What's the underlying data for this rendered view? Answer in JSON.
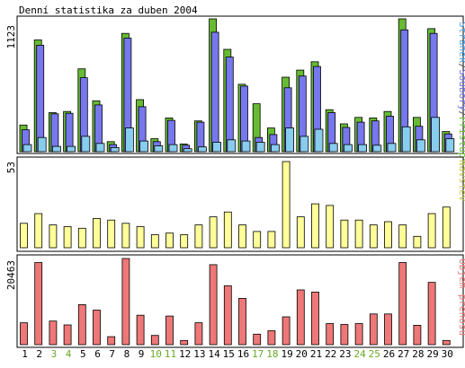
{
  "chart_data": {
    "type": "bar",
    "title": "Denní statistika za duben 2004",
    "categories": [
      "1",
      "2",
      "3",
      "4",
      "5",
      "6",
      "7",
      "8",
      "9",
      "10",
      "11",
      "12",
      "13",
      "14",
      "15",
      "16",
      "17",
      "18",
      "19",
      "20",
      "21",
      "22",
      "23",
      "24",
      "25",
      "26",
      "27",
      "28",
      "29",
      "30"
    ],
    "weekend_days": [
      "3",
      "4",
      "10",
      "11",
      "17",
      "18",
      "24",
      "25"
    ],
    "panels": [
      {
        "id": "hits",
        "ymax_label": "1123",
        "ymax": 1123,
        "side_label": {
          "parts": [
            {
              "text": "Stránek",
              "color": "#4fa3e6"
            },
            {
              "text": "/",
              "color": "#555555"
            },
            {
              "text": "Soubory",
              "color": "#7070e0"
            },
            {
              "text": "/",
              "color": "#555555"
            },
            {
              "text": "Přístupů",
              "color": "#6cc43c"
            }
          ]
        },
        "series": [
          {
            "name": "Přístupů",
            "color": "#66bb33",
            "values": [
              225,
              945,
              330,
              340,
              700,
              430,
              85,
              1000,
              440,
              110,
              285,
              65,
              260,
              1123,
              865,
              570,
              405,
              200,
              630,
              690,
              760,
              355,
              235,
              290,
              285,
              340,
              1123,
              290,
              1040,
              170
            ]
          },
          {
            "name": "Soubory",
            "color": "#7777ee",
            "values": [
              185,
              900,
              320,
              325,
              625,
              395,
              60,
              960,
              380,
              85,
              265,
              55,
              250,
              1010,
              800,
              555,
              120,
              145,
              540,
              640,
              720,
              330,
              205,
              250,
              260,
              300,
              1030,
              215,
              1000,
              150
            ]
          },
          {
            "name": "Stránek",
            "color": "#88ccee",
            "values": [
              60,
              120,
              45,
              45,
              130,
              70,
              35,
              200,
              90,
              50,
              60,
              25,
              40,
              80,
              100,
              90,
              80,
              60,
              200,
              130,
              190,
              70,
              60,
              60,
              55,
              70,
              210,
              100,
              290,
              110
            ]
          }
        ]
      },
      {
        "id": "visits",
        "ymax_label": "53",
        "ymax": 53,
        "side_label": {
          "parts": [
            {
              "text": "Návštěv",
              "color": "#c8c850"
            }
          ]
        },
        "series": [
          {
            "name": "Návštěv",
            "color": "#ffff99",
            "values": [
              15,
              21,
              14,
              13,
              12,
              18,
              17,
              15,
              13,
              8,
              9,
              8,
              14,
              19,
              22,
              14,
              10,
              10,
              53,
              19,
              27,
              26,
              17,
              17,
              14,
              16,
              14,
              7,
              21,
              25
            ]
          }
        ]
      },
      {
        "id": "transfer",
        "ymax_label": "20463",
        "ymax": 20463,
        "side_label": {
          "parts": [
            {
              "text": "Objem přenosu",
              "color": "#e87878"
            }
          ]
        },
        "series": [
          {
            "name": "Objem přenosu",
            "color": "#ee7777",
            "values": [
              5200,
              19500,
              5600,
              4700,
              9500,
              8200,
              1900,
              20463,
              7000,
              2200,
              6800,
              1000,
              5200,
              19000,
              14000,
              11000,
              2500,
              3300,
              6600,
              13000,
              12500,
              5000,
              4800,
              5000,
              7300,
              7300,
              19500,
              4600,
              14800,
              1000
            ]
          }
        ]
      }
    ]
  }
}
